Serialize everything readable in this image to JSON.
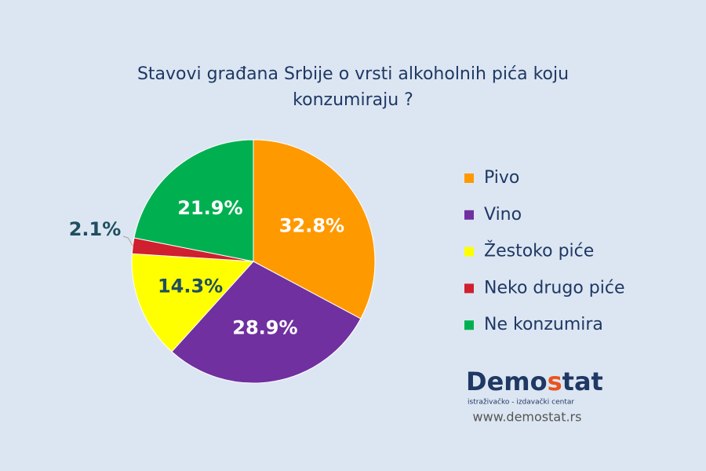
{
  "chart_data": {
    "type": "pie",
    "title": "Stavovi građana Srbije o vrsti alkoholnih pića koju konzumiraju ?",
    "categories": [
      "Pivo",
      "Vino",
      "Žestoko piće",
      "Neko drugo piće",
      "Ne konzumira"
    ],
    "values": [
      32.8,
      28.9,
      14.3,
      2.1,
      21.9
    ],
    "value_labels": [
      "32.8%",
      "28.9%",
      "14.3%",
      "2.1%",
      "21.9%"
    ],
    "colors": [
      "#ff9900",
      "#7030a0",
      "#ffff00",
      "#d01f2e",
      "#00b050"
    ],
    "label_colors": [
      "#ffffff",
      "#ffffff",
      "#1f4e60",
      "#1f4e60",
      "#ffffff"
    ],
    "legend": "right"
  },
  "branding": {
    "logo_parts": [
      "Demo",
      "s",
      "tat"
    ],
    "tagline": "istraživačko - izdavački  centar",
    "url": "www.demostat.rs"
  }
}
